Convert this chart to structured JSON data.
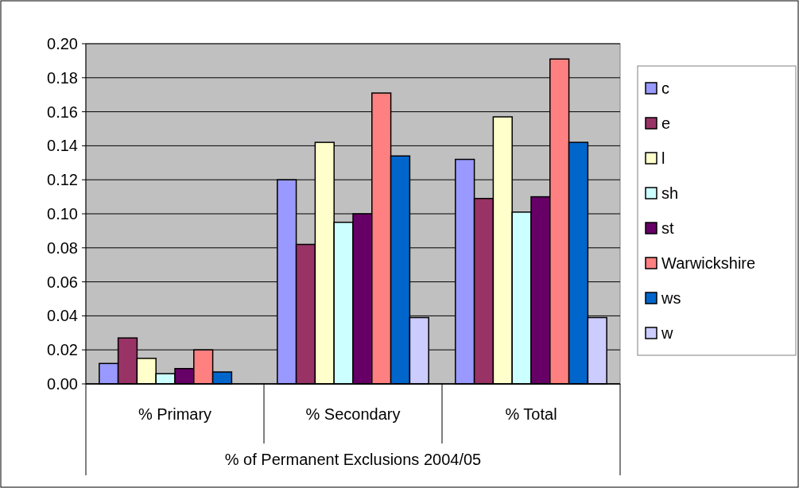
{
  "chart_data": {
    "type": "bar",
    "xlabel": "% of Permanent Exclusions 2004/05",
    "categories": [
      "% Primary",
      "% Secondary",
      "% Total"
    ],
    "series": [
      {
        "name": "c",
        "color": "#9999ff",
        "values": [
          0.012,
          0.12,
          0.132
        ]
      },
      {
        "name": "e",
        "color": "#993366",
        "values": [
          0.027,
          0.082,
          0.109
        ]
      },
      {
        "name": "l",
        "color": "#ffffcc",
        "values": [
          0.015,
          0.142,
          0.157
        ]
      },
      {
        "name": "sh",
        "color": "#ccffff",
        "values": [
          0.006,
          0.095,
          0.101
        ]
      },
      {
        "name": "st",
        "color": "#660066",
        "values": [
          0.009,
          0.1,
          0.11
        ]
      },
      {
        "name": "Warwickshire",
        "color": "#ff8080",
        "values": [
          0.02,
          0.171,
          0.191
        ]
      },
      {
        "name": "ws",
        "color": "#0066cc",
        "values": [
          0.007,
          0.134,
          0.142
        ]
      },
      {
        "name": "w",
        "color": "#ccccff",
        "values": [
          null,
          0.039,
          0.039
        ]
      }
    ],
    "ylim": [
      0,
      0.2
    ],
    "yticks": [
      {
        "value": 0,
        "label": "0.00"
      },
      {
        "value": 0.02,
        "label": "0.02"
      },
      {
        "value": 0.04,
        "label": "0.04"
      },
      {
        "value": 0.06,
        "label": "0.06"
      },
      {
        "value": 0.08,
        "label": "0.08"
      },
      {
        "value": 0.1,
        "label": "0.10"
      },
      {
        "value": 0.12,
        "label": "0.12"
      },
      {
        "value": 0.14,
        "label": "0.14"
      },
      {
        "value": 0.16,
        "label": "0.16"
      },
      {
        "value": 0.18,
        "label": "0.18"
      },
      {
        "value": 0.2,
        "label": "0.20"
      }
    ],
    "grid": "y",
    "legend": "right"
  }
}
